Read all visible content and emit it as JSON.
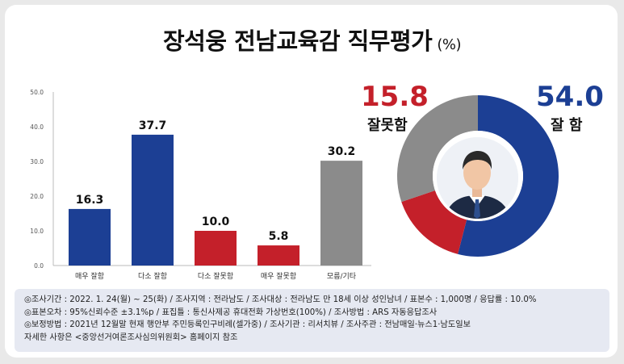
{
  "title": {
    "main": "장석웅 전남교육감 직무평가",
    "unit": "(%)"
  },
  "colors": {
    "blue": "#1c3f94",
    "red": "#c4202a",
    "gray": "#8b8b8b"
  },
  "chart_data": [
    {
      "type": "bar",
      "categories": [
        "매우 잘함",
        "다소 잘함",
        "다소 잘못함",
        "매우 잘못함",
        "모름/기타"
      ],
      "values": [
        16.3,
        37.7,
        10.0,
        5.8,
        30.2
      ],
      "value_labels": [
        "16.3",
        "37.7",
        "10.0",
        "5.8",
        "30.2"
      ],
      "bar_colors": [
        "#1c3f94",
        "#1c3f94",
        "#c4202a",
        "#c4202a",
        "#8b8b8b"
      ],
      "ylim": [
        0,
        50
      ],
      "yticks": [
        "0.0",
        "10.0",
        "20.0",
        "30.0",
        "40.0",
        "50.0"
      ],
      "xlabel": "",
      "ylabel": ""
    },
    {
      "type": "pie",
      "categories": [
        "잘 함",
        "잘못함",
        "모름/기타"
      ],
      "values": [
        54.0,
        15.8,
        30.2
      ],
      "colors": [
        "#1c3f94",
        "#c4202a",
        "#8b8b8b"
      ],
      "labels": {
        "good_value": "54.0",
        "good_label": "잘 함",
        "bad_value": "15.8",
        "bad_label": "잘못함"
      }
    }
  ],
  "notes": [
    "◎조사기간 : 2022. 1. 24(월) ~ 25(화) / 조사지역 : 전라남도 / 조사대상 : 전라남도 만 18세 이상 성인남녀 / 표본수 : 1,000명 / 응답률 : 10.0%",
    "◎표본오차 : 95%신뢰수준 ±3.1%p  / 표집틀 : 통신사제공 휴대전화 가상번호(100%) / 조사방법 : ARS 자동응답조사",
    "◎보정방법 : 2021년 12월말 현재 행안부 주민등록인구비례(셀가중) / 조사기관 : 리서치뷰 / 조사주관 : 전남매일·뉴스1·남도일보",
    "자세한 사항은 <중앙선거여론조사심의위원회> 홈페이지 참조"
  ]
}
